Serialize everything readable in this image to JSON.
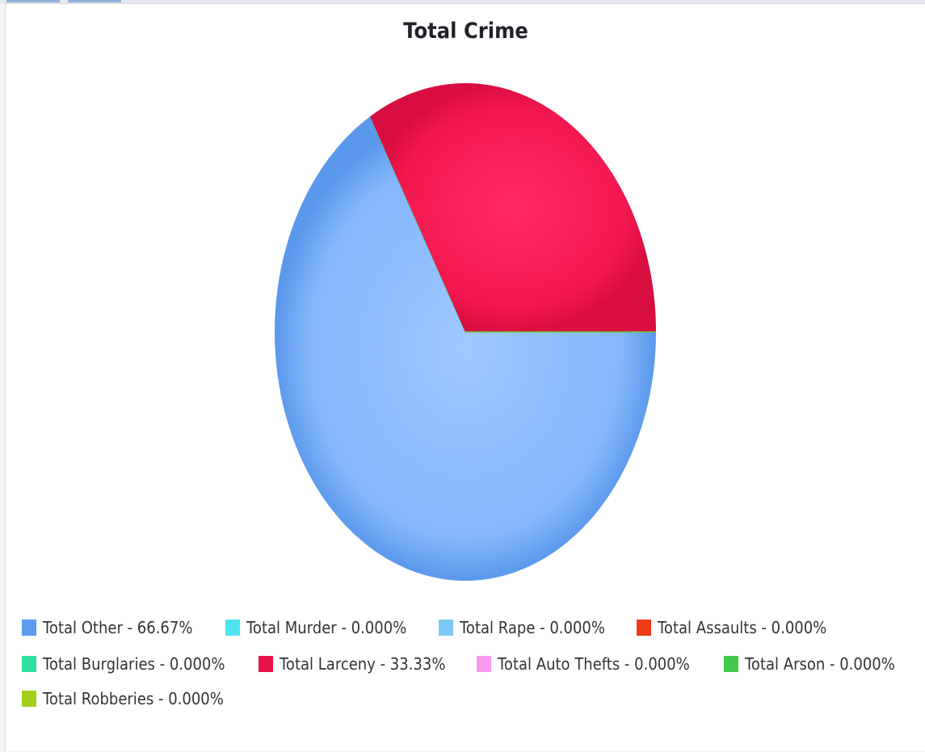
{
  "chart_data": {
    "type": "pie",
    "title": "Total Crime",
    "legend_position": "bottom",
    "slices": [
      {
        "label": "Total Other - 66.67%",
        "value": 66.67,
        "color": "#5b9bf0"
      },
      {
        "label": "Total Murder - 0.000%",
        "value": 0.0,
        "color": "#4fe3f2"
      },
      {
        "label": "Total Rape - 0.000%",
        "value": 0.0,
        "color": "#7dc8f7"
      },
      {
        "label": "Total Assaults - 0.000%",
        "value": 0.0,
        "color": "#ee3a16"
      },
      {
        "label": "Total Burglaries - 0.000%",
        "value": 0.0,
        "color": "#2ee0a0"
      },
      {
        "label": "Total Larceny - 33.33%",
        "value": 33.33,
        "color": "#e6134a"
      },
      {
        "label": "Total Auto Thefts - 0.000%",
        "value": 0.0,
        "color": "#f79af2"
      },
      {
        "label": "Total Arson - 0.000%",
        "value": 0.0,
        "color": "#45c74a"
      },
      {
        "label": "Total Robberies - 0.000%",
        "value": 0.0,
        "color": "#a3cf1a"
      }
    ]
  }
}
